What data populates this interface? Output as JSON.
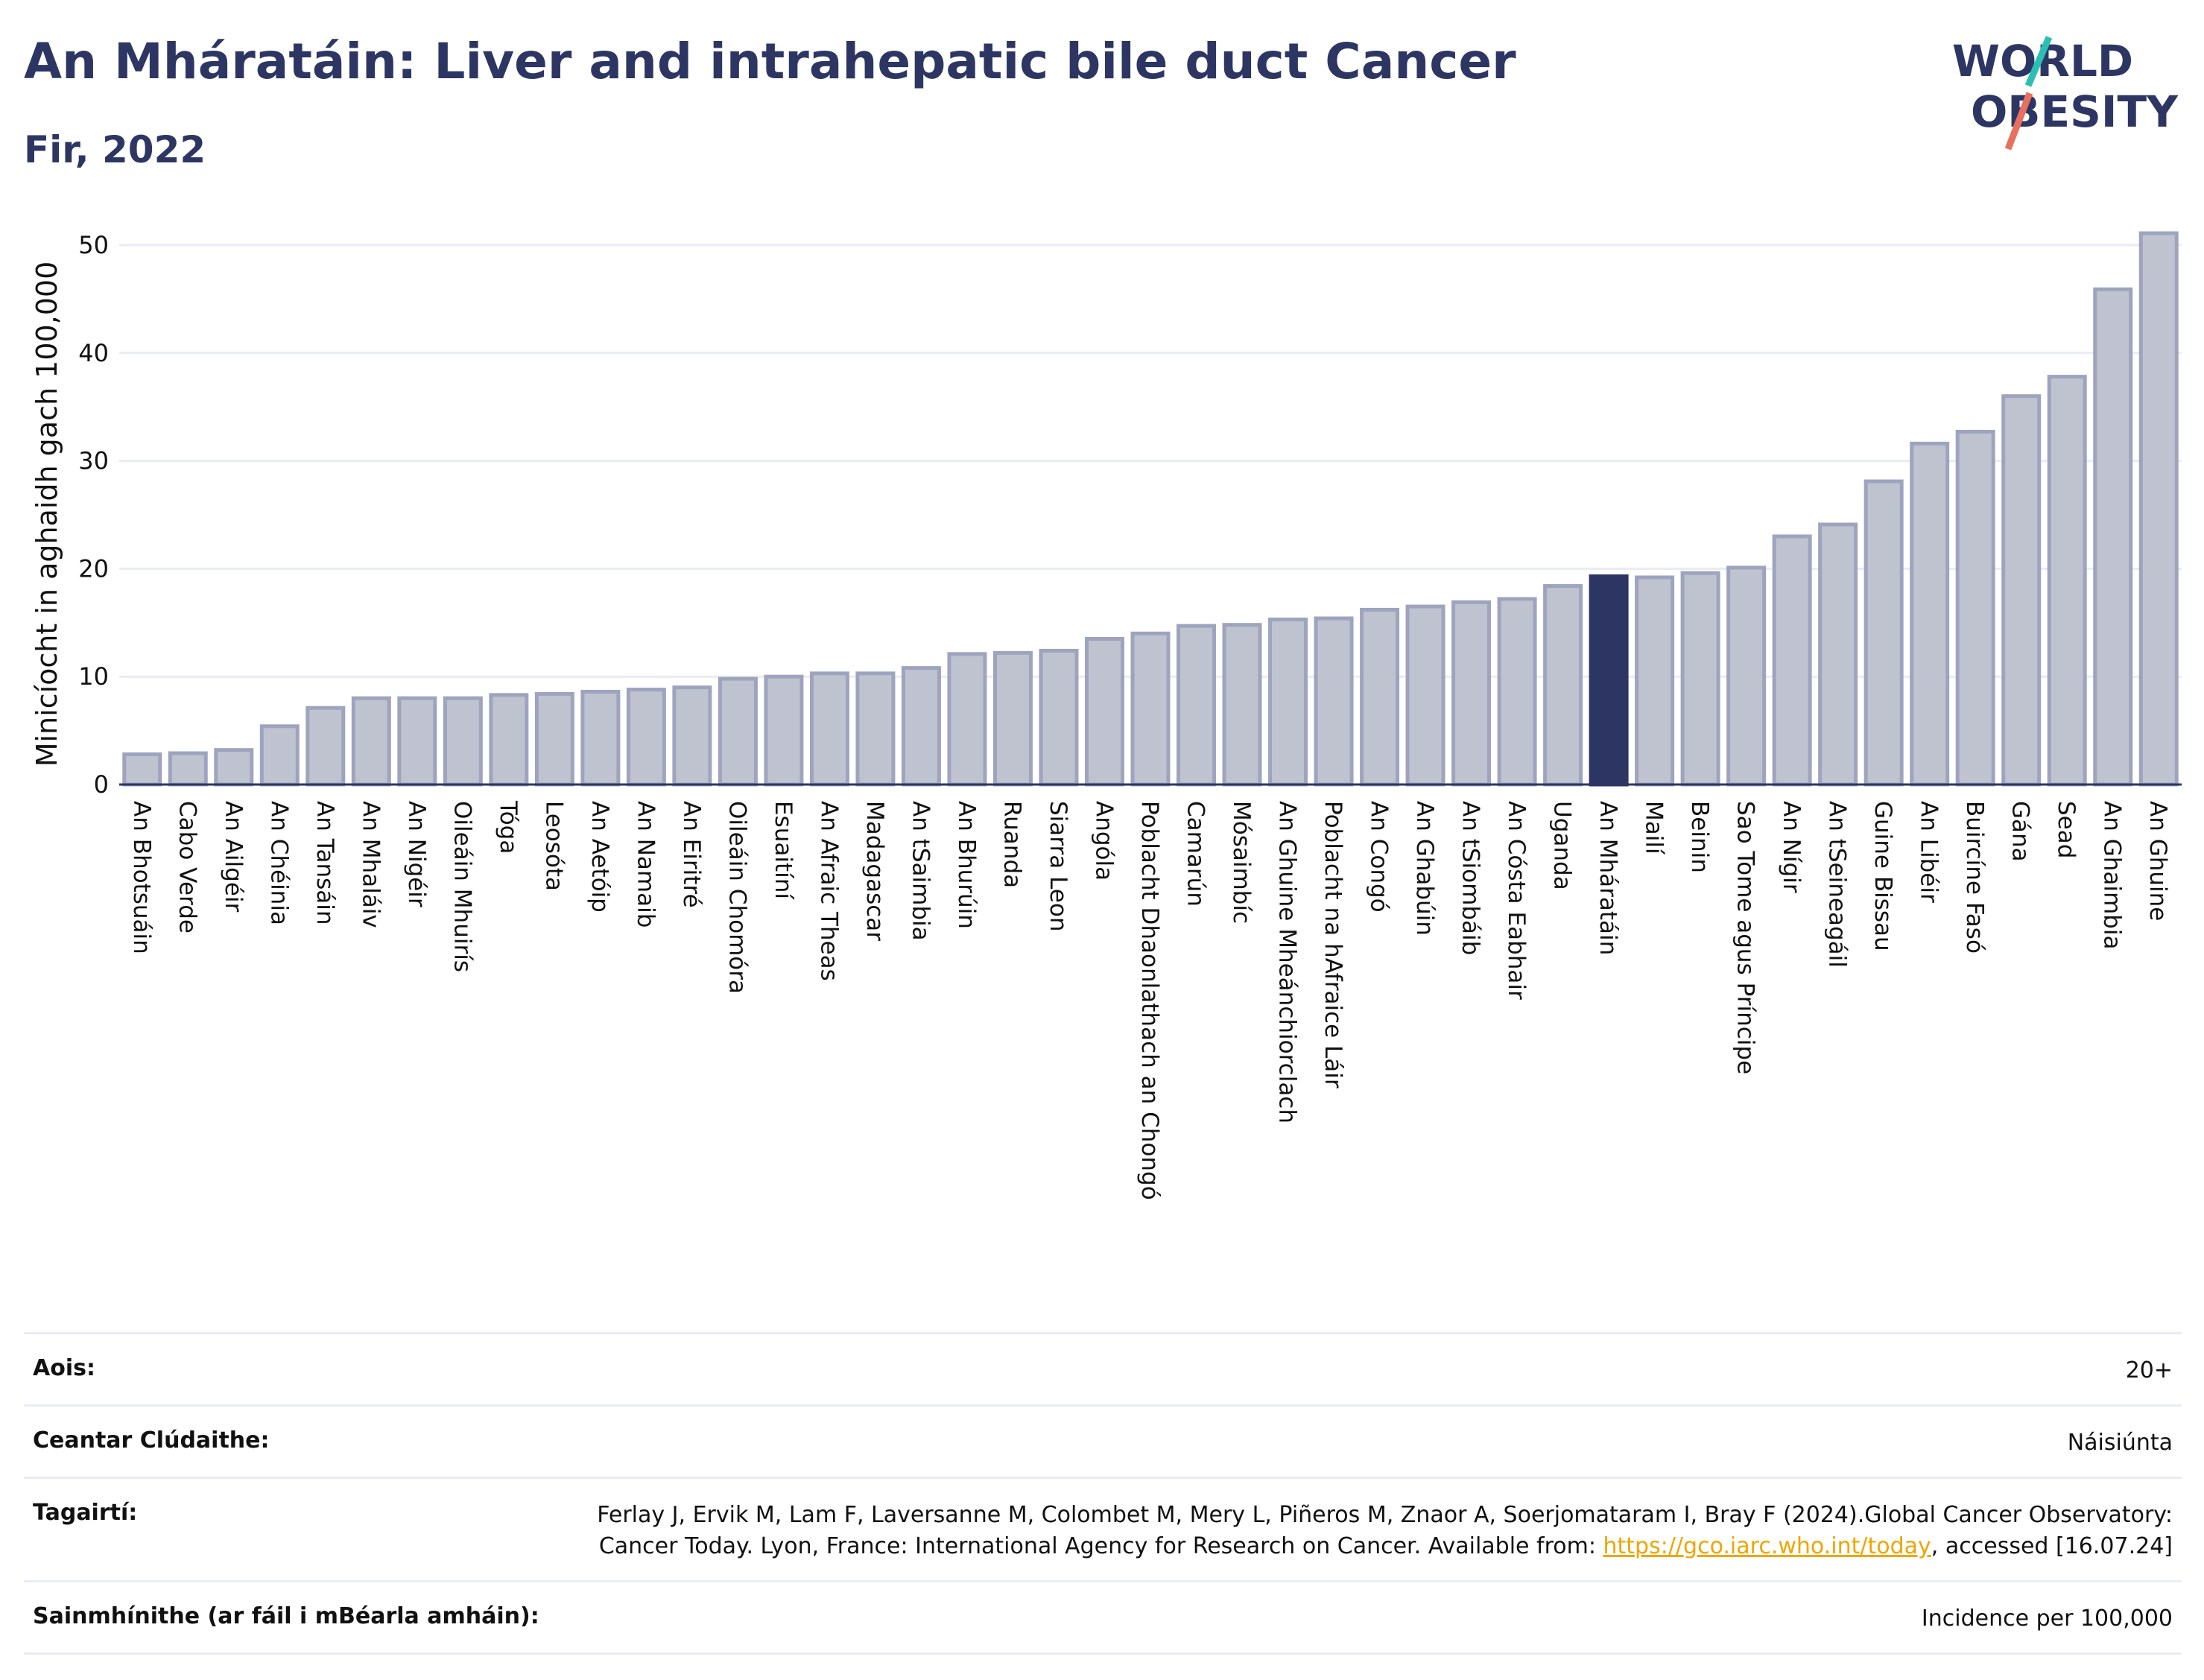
{
  "header": {
    "title": "An Mháratáin: Liver and intrahepatic bile duct Cancer",
    "subtitle": "Fir, 2022"
  },
  "logo": {
    "line1": "WORLD",
    "line2": "OBESITY",
    "colors": {
      "text": "#2d3663",
      "slash_teal": "#2bbfb3",
      "slash_red": "#e8705f"
    }
  },
  "chart_data": {
    "type": "bar",
    "title": "",
    "xlabel": "",
    "ylabel": "Minicíocht in aghaidh gach 100,000",
    "ylim": [
      0,
      52
    ],
    "yticks": [
      0,
      10,
      20,
      30,
      40,
      50
    ],
    "grid": true,
    "legend": "none",
    "highlight": "An Mháratáin",
    "colors": {
      "bar": "#bfc3d0",
      "bar_border": "#9ea4bd",
      "highlight": "#2d3663"
    },
    "categories": [
      "An Bhotsuáin",
      "Cabo Verde",
      "An Ailgéir",
      "An Chéinia",
      "An Tansáin",
      "An Mhaláiv",
      "An Nigéir",
      "Oileáin Mhuirís",
      "Tóga",
      "Leosóta",
      "An Aetóip",
      "An Namaib",
      "An Eiritré",
      "Oileáin Chomóra",
      "Esuaitíní",
      "An Afraic Theas",
      "Madagascar",
      "An tSaimbia",
      "An Bhurúin",
      "Ruanda",
      "Siarra Leon",
      "Angóla",
      "Poblacht Dhaonlathach an Chongó",
      "Camarún",
      "Mósaimbíc",
      "An Ghuine Mheánchiorclach",
      "Poblacht na hAfraice Láir",
      "An Congó",
      "An Ghabúin",
      "An tSiombáib",
      "An Cósta Eabhair",
      "Uganda",
      "An Mháratáin",
      "Mailí",
      "Beinin",
      "Sao Tome agus Príncipe",
      "An Nígir",
      "An tSeineagáil",
      "Guine Bissau",
      "An Libéir",
      "Buircíne Fasó",
      "Gána",
      "Sead",
      "An Ghaimbia",
      "An Ghuine"
    ],
    "values": [
      2.8,
      2.9,
      3.2,
      5.4,
      7.1,
      8.0,
      8.0,
      8.0,
      8.3,
      8.4,
      8.6,
      8.8,
      9.0,
      9.8,
      10.0,
      10.3,
      10.3,
      10.8,
      12.1,
      12.2,
      12.4,
      13.5,
      14.0,
      14.7,
      14.8,
      15.3,
      15.4,
      16.2,
      16.5,
      16.9,
      17.2,
      18.4,
      19.3,
      19.2,
      19.6,
      20.1,
      23.0,
      24.1,
      28.1,
      31.6,
      32.7,
      36.0,
      37.8,
      45.9,
      51.1
    ]
  },
  "info": {
    "rows": [
      {
        "label": "Aois:",
        "value": "20+"
      },
      {
        "label": "Ceantar Clúdaithe:",
        "value": "Náisiúnta"
      },
      {
        "label": "Tagairtí:",
        "value": "Ferlay J, Ervik M, Lam F, Laversanne M, Colombet M, Mery L, Piñeros M, Znaor A, Soerjomataram I, Bray F (2024).Global Cancer Observatory: Cancer Today. Lyon, France: International Agency for Research on Cancer. Available from: ",
        "link": "https://gco.iarc.who.int/today",
        "after": ", accessed [16.07.24]"
      },
      {
        "label": "Sainmhínithe (ar fáil i mBéarla amháin):",
        "value": "Incidence per 100,000"
      }
    ]
  }
}
